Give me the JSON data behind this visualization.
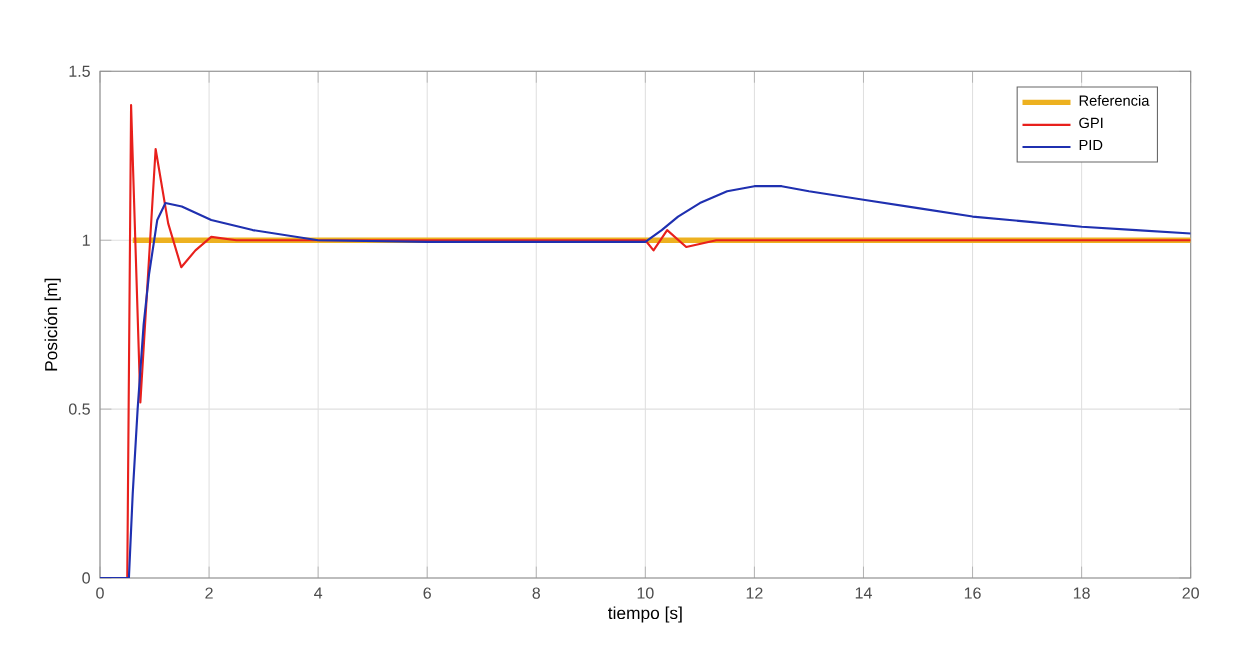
{
  "chart_data": {
    "type": "line",
    "xlabel": "tiempo [s]",
    "ylabel": "Posición [m]",
    "xlim": [
      0,
      20
    ],
    "ylim": [
      0,
      1.5
    ],
    "xticks": [
      0,
      2,
      4,
      6,
      8,
      10,
      12,
      14,
      16,
      18,
      20
    ],
    "yticks": [
      0,
      0.5,
      1,
      1.5
    ],
    "grid": true,
    "legend": "top right",
    "marker": "none",
    "line_style": "solid",
    "series": [
      {
        "name": "Referencia",
        "color": "#edb120",
        "x": [
          0.6,
          20
        ],
        "values": [
          1,
          1
        ]
      },
      {
        "name": "GPI",
        "color": "#e8201c",
        "x": [
          0,
          0.5,
          0.57,
          0.74,
          1.02,
          1.25,
          1.49,
          1.75,
          2.04,
          2.5,
          3,
          10,
          10.15,
          10.4,
          10.75,
          11.3,
          20
        ],
        "values": [
          0,
          0,
          1.4,
          0.52,
          1.27,
          1.05,
          0.92,
          0.97,
          1.01,
          1.0,
          1.0,
          1.0,
          0.97,
          1.03,
          0.98,
          1.0,
          1.0
        ]
      },
      {
        "name": "PID",
        "color": "#1f30b0",
        "x": [
          0,
          0.53,
          0.6,
          0.69,
          0.8,
          0.9,
          1.05,
          1.2,
          1.5,
          2.04,
          2.8,
          4,
          6,
          8,
          10,
          10.3,
          10.6,
          11,
          11.5,
          12,
          12.5,
          13,
          14,
          15,
          16,
          17,
          18,
          19,
          20
        ],
        "values": [
          0,
          0,
          0.25,
          0.5,
          0.75,
          0.9,
          1.06,
          1.11,
          1.1,
          1.06,
          1.03,
          1.0,
          0.995,
          0.995,
          0.995,
          1.03,
          1.07,
          1.11,
          1.145,
          1.16,
          1.16,
          1.145,
          1.12,
          1.095,
          1.07,
          1.055,
          1.04,
          1.03,
          1.02
        ]
      }
    ]
  }
}
